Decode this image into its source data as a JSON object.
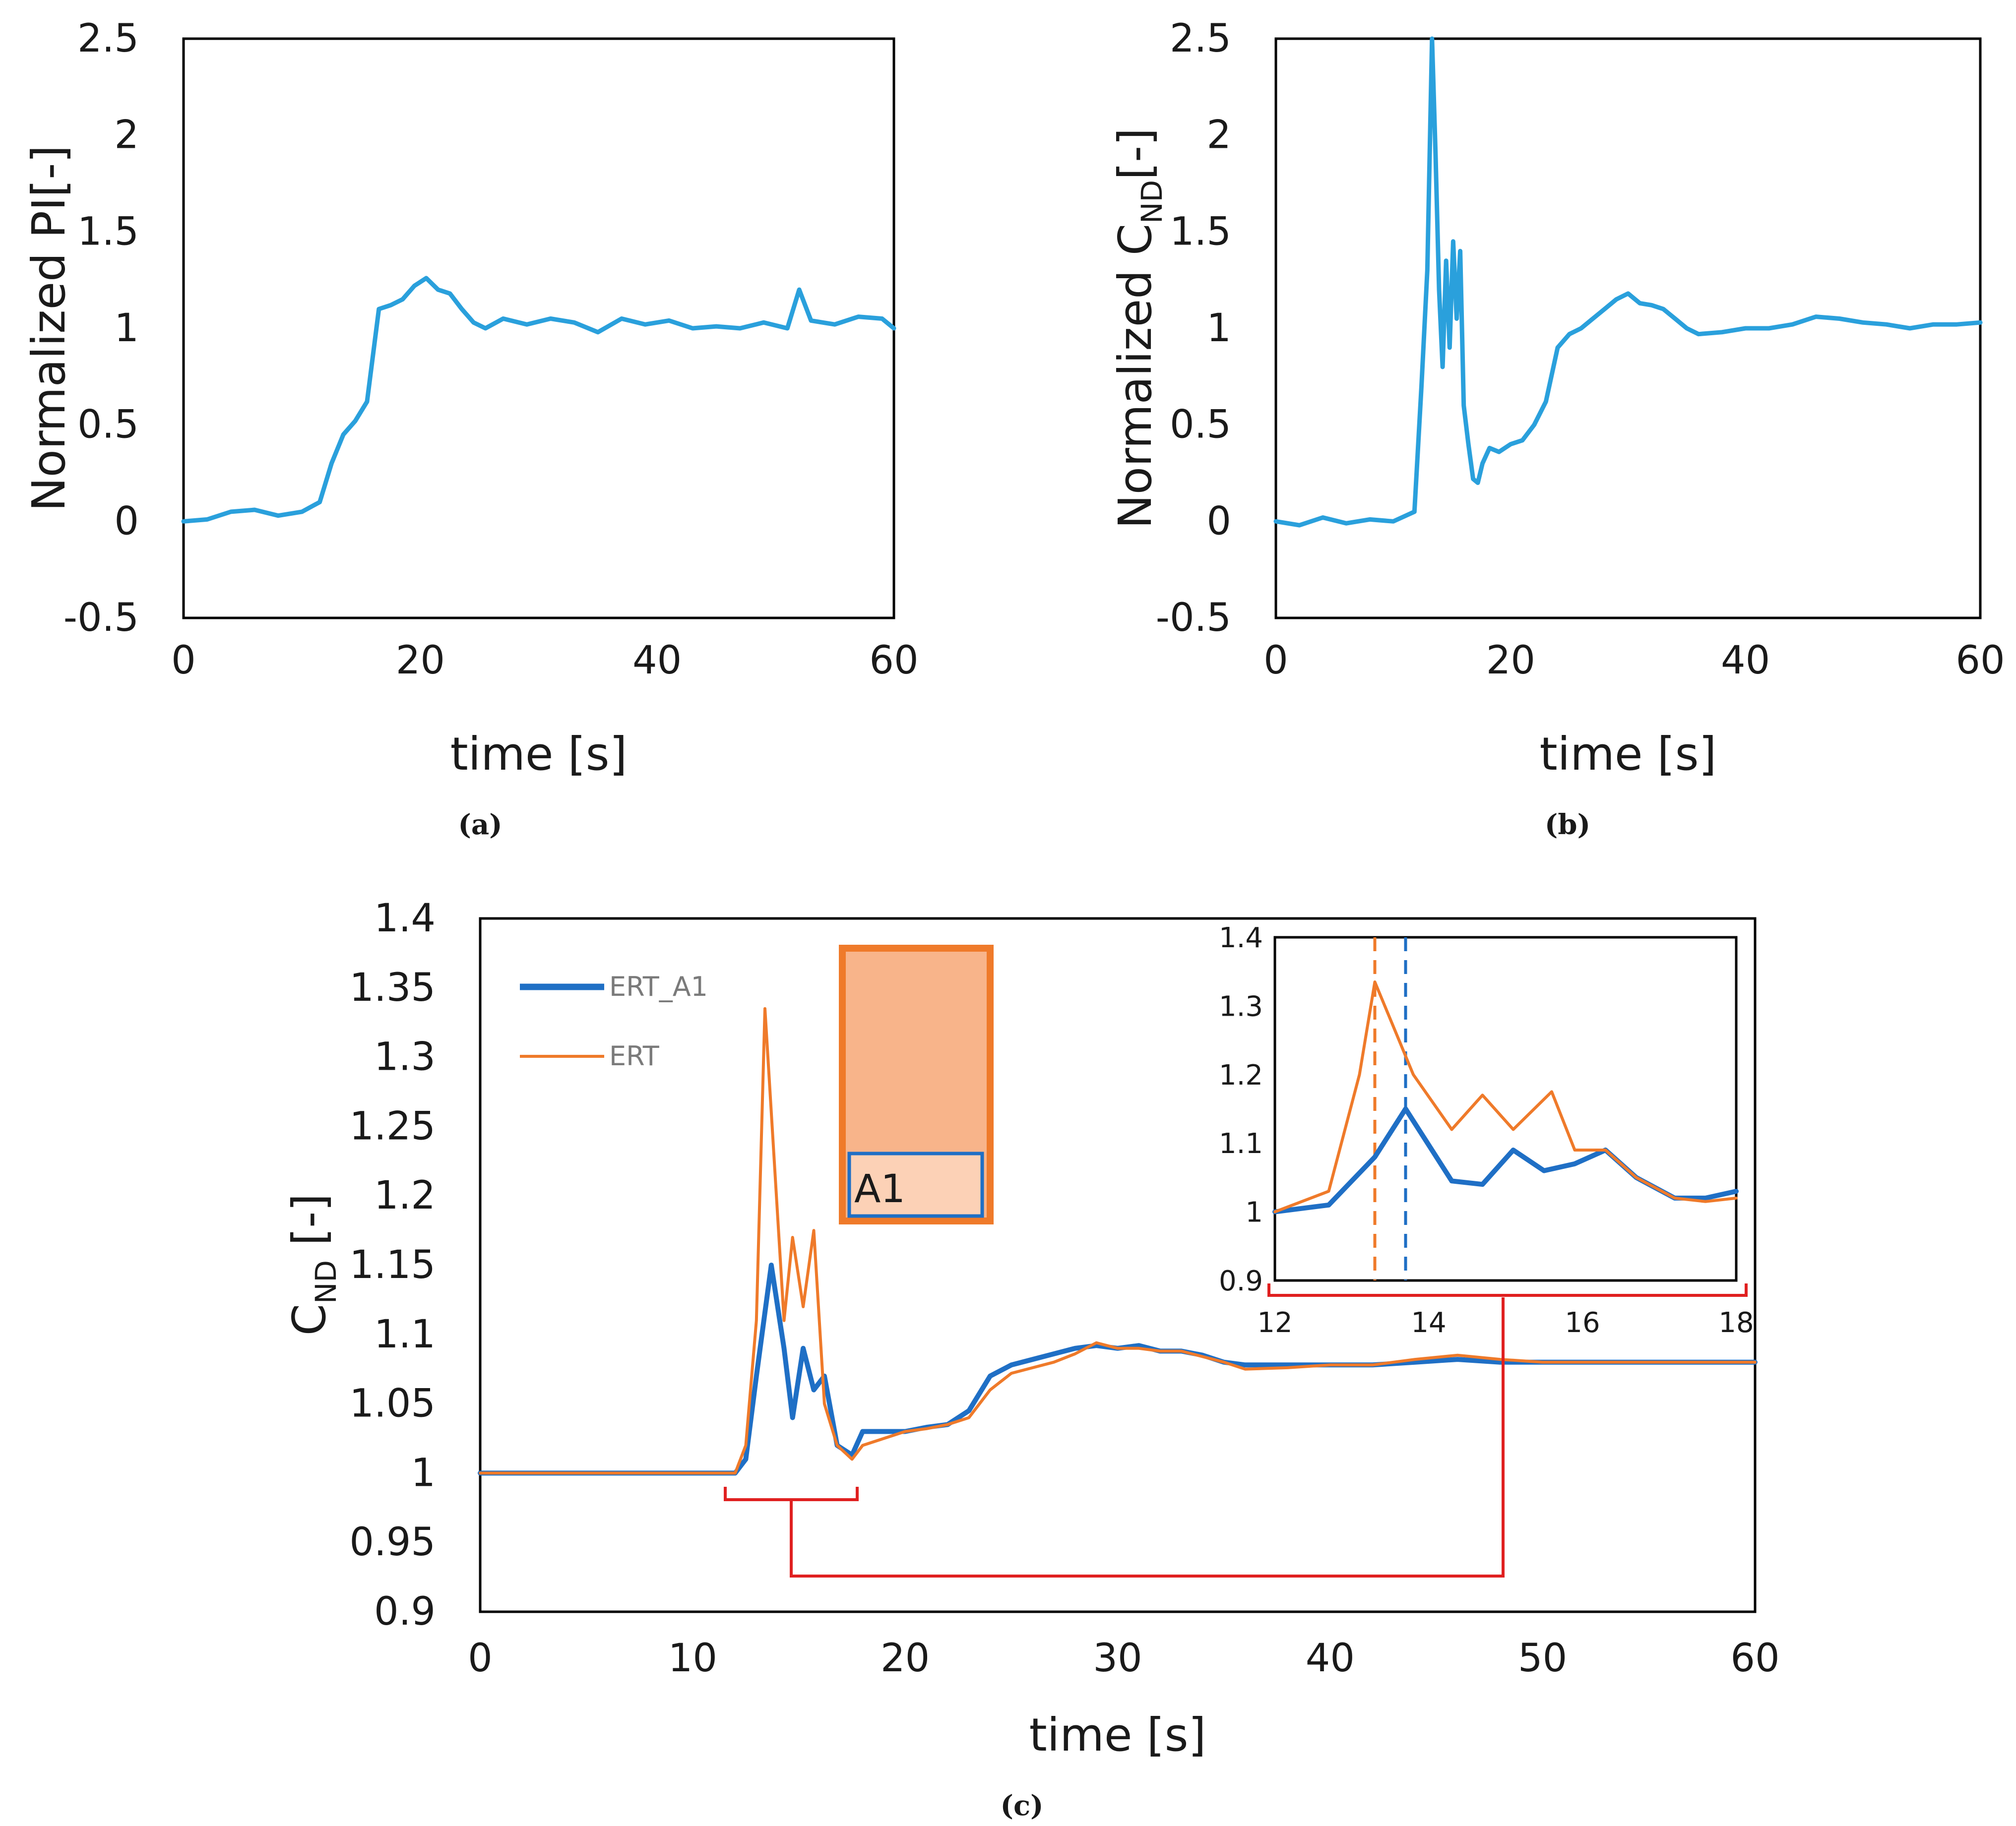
{
  "colors": {
    "lightblue": "#2aa0dc",
    "blue": "#1f6fc5",
    "orange": "#ef7a2a",
    "red": "#e02020",
    "axis": "#000000"
  },
  "chart_data": [
    {
      "id": "a",
      "type": "line",
      "caption": "(a)",
      "xlabel": "time [s]",
      "ylabel": "Normalized PI[-]",
      "xlim": [
        0,
        60
      ],
      "ylim": [
        -0.5,
        2.5
      ],
      "xticks": [
        "0",
        "20",
        "40",
        "60"
      ],
      "yticks": [
        "-0.5",
        "0",
        "0.5",
        "1",
        "1.5",
        "2",
        "2.5"
      ],
      "series": [
        {
          "name": "PI",
          "color": "#2aa0dc",
          "x": [
            0,
            2,
            4,
            6,
            8,
            10,
            11.5,
            12.5,
            13.5,
            14.5,
            15.5,
            16.5,
            17.5,
            18.5,
            19.5,
            20.5,
            21.5,
            22.5,
            23.5,
            24.5,
            25.5,
            27,
            29,
            31,
            33,
            35,
            37,
            39,
            41,
            43,
            45,
            47,
            49,
            51,
            52,
            53,
            55,
            57,
            59,
            60
          ],
          "y": [
            0,
            0.01,
            0.05,
            0.06,
            0.03,
            0.05,
            0.1,
            0.3,
            0.45,
            0.52,
            0.62,
            1.1,
            1.12,
            1.15,
            1.22,
            1.26,
            1.2,
            1.18,
            1.1,
            1.03,
            1.0,
            1.05,
            1.02,
            1.05,
            1.03,
            0.98,
            1.05,
            1.02,
            1.04,
            1.0,
            1.01,
            1.0,
            1.03,
            1.0,
            1.2,
            1.04,
            1.02,
            1.06,
            1.05,
            1.0
          ]
        }
      ]
    },
    {
      "id": "b",
      "type": "line",
      "caption": "(b)",
      "xlabel": "time [s]",
      "ylabel_main": "Normalized C",
      "ylabel_sub": "ND",
      "ylabel_suffix": "[-]",
      "xlim": [
        0,
        60
      ],
      "ylim": [
        -0.5,
        2.5
      ],
      "xticks": [
        "0",
        "20",
        "40",
        "60"
      ],
      "yticks": [
        "-0.5",
        "0",
        "0.5",
        "1",
        "1.5",
        "2",
        "2.5"
      ],
      "series": [
        {
          "name": "CND",
          "color": "#2aa0dc",
          "x": [
            0,
            2,
            4,
            6,
            8,
            10,
            11.8,
            12.4,
            12.9,
            13.3,
            13.6,
            13.9,
            14.2,
            14.5,
            14.8,
            15.1,
            15.4,
            15.7,
            16.0,
            16.4,
            16.8,
            17.2,
            17.6,
            18.2,
            19,
            20,
            21,
            22,
            23,
            24,
            25,
            26,
            27,
            28,
            29,
            30,
            31,
            32,
            33,
            34,
            35,
            36,
            38,
            40,
            42,
            44,
            46,
            48,
            50,
            52,
            54,
            56,
            58,
            60
          ],
          "y": [
            0,
            -0.02,
            0.02,
            -0.01,
            0.01,
            0,
            0.05,
            0.7,
            1.3,
            2.5,
            1.9,
            1.2,
            0.8,
            1.35,
            0.9,
            1.45,
            1.05,
            1.4,
            0.6,
            0.4,
            0.22,
            0.2,
            0.3,
            0.38,
            0.36,
            0.4,
            0.42,
            0.5,
            0.62,
            0.9,
            0.97,
            1.0,
            1.05,
            1.1,
            1.15,
            1.18,
            1.13,
            1.12,
            1.1,
            1.05,
            1.0,
            0.97,
            0.98,
            1.0,
            1.0,
            1.02,
            1.06,
            1.05,
            1.03,
            1.02,
            1.0,
            1.02,
            1.02,
            1.03
          ]
        }
      ]
    },
    {
      "id": "c",
      "type": "line",
      "caption": "(c)",
      "xlabel": "time [s]",
      "ylabel_main": "C",
      "ylabel_sub": "ND",
      "ylabel_suffix": " [-]",
      "xlim": [
        0,
        60
      ],
      "ylim": [
        0.9,
        1.4
      ],
      "xticks": [
        "0",
        "10",
        "20",
        "30",
        "40",
        "50",
        "60"
      ],
      "yticks": [
        "0.9",
        "0.95",
        "1",
        "1.05",
        "1.1",
        "1.15",
        "1.2",
        "1.25",
        "1.3",
        "1.35",
        "1.4"
      ],
      "legend": [
        "ERT_A1",
        "ERT"
      ],
      "region_label": "A1",
      "series": [
        {
          "name": "ERT_A1",
          "color": "#1f6fc5",
          "x": [
            0,
            2,
            4,
            6,
            8,
            10,
            12,
            12.5,
            13,
            13.7,
            14.3,
            14.7,
            15.2,
            15.7,
            16.2,
            16.8,
            17.5,
            18,
            19,
            20,
            21,
            22,
            23,
            24,
            25,
            26,
            27,
            28,
            29,
            30,
            31,
            32,
            33,
            34,
            35,
            36,
            38,
            40,
            42,
            44,
            46,
            48,
            50,
            52,
            54,
            56,
            58,
            60
          ],
          "y": [
            1.0,
            1.0,
            1.0,
            1.0,
            1.0,
            1.0,
            1.0,
            1.01,
            1.07,
            1.15,
            1.09,
            1.04,
            1.09,
            1.06,
            1.07,
            1.02,
            1.013,
            1.03,
            1.03,
            1.03,
            1.033,
            1.035,
            1.045,
            1.07,
            1.078,
            1.082,
            1.086,
            1.09,
            1.092,
            1.09,
            1.092,
            1.088,
            1.088,
            1.085,
            1.08,
            1.078,
            1.078,
            1.078,
            1.078,
            1.08,
            1.082,
            1.08,
            1.08,
            1.08,
            1.08,
            1.08,
            1.08,
            1.08
          ]
        },
        {
          "name": "ERT",
          "color": "#ef7a2a",
          "x": [
            0,
            2,
            4,
            6,
            8,
            10,
            12,
            12.5,
            13,
            13.4,
            13.9,
            14.3,
            14.7,
            15.2,
            15.7,
            16.2,
            16.8,
            17.5,
            18,
            19,
            20,
            21,
            22,
            23,
            24,
            25,
            26,
            27,
            28,
            29,
            30,
            31,
            32,
            33,
            34,
            35,
            36,
            38,
            40,
            42,
            44,
            46,
            48,
            50,
            52,
            54,
            56,
            58,
            60
          ],
          "y": [
            1.0,
            1.0,
            1.0,
            1.0,
            1.0,
            1.0,
            1.0,
            1.02,
            1.11,
            1.335,
            1.21,
            1.11,
            1.17,
            1.12,
            1.175,
            1.05,
            1.02,
            1.01,
            1.02,
            1.025,
            1.03,
            1.032,
            1.035,
            1.04,
            1.06,
            1.072,
            1.076,
            1.08,
            1.086,
            1.094,
            1.09,
            1.09,
            1.088,
            1.088,
            1.084,
            1.08,
            1.075,
            1.076,
            1.078,
            1.078,
            1.082,
            1.085,
            1.082,
            1.08,
            1.08,
            1.08,
            1.08,
            1.08,
            1.08
          ]
        }
      ],
      "inset": {
        "xlim": [
          12,
          18
        ],
        "ylim": [
          0.9,
          1.4
        ],
        "xticks": [
          "12",
          "14",
          "16",
          "18"
        ],
        "yticks": [
          "0.9",
          "1",
          "1.1",
          "1.2",
          "1.3",
          "1.4"
        ],
        "vlines": [
          {
            "x": 13.3,
            "color": "#ef7a2a"
          },
          {
            "x": 13.7,
            "color": "#1f6fc5"
          }
        ],
        "series": [
          {
            "name": "ERT_A1",
            "color": "#1f6fc5",
            "x": [
              12,
              12.7,
              13.3,
              13.7,
              14.3,
              14.7,
              15.1,
              15.5,
              15.9,
              16.3,
              16.7,
              17.2,
              17.6,
              18
            ],
            "y": [
              1.0,
              1.01,
              1.08,
              1.15,
              1.045,
              1.04,
              1.09,
              1.06,
              1.07,
              1.09,
              1.05,
              1.02,
              1.02,
              1.03
            ]
          },
          {
            "name": "ERT",
            "color": "#ef7a2a",
            "x": [
              12,
              12.7,
              13.1,
              13.3,
              13.8,
              14.3,
              14.7,
              15.1,
              15.6,
              15.9,
              16.3,
              16.7,
              17.2,
              17.6,
              18
            ],
            "y": [
              1.0,
              1.03,
              1.2,
              1.335,
              1.2,
              1.12,
              1.17,
              1.12,
              1.175,
              1.09,
              1.09,
              1.05,
              1.02,
              1.015,
              1.02
            ]
          }
        ]
      }
    }
  ]
}
